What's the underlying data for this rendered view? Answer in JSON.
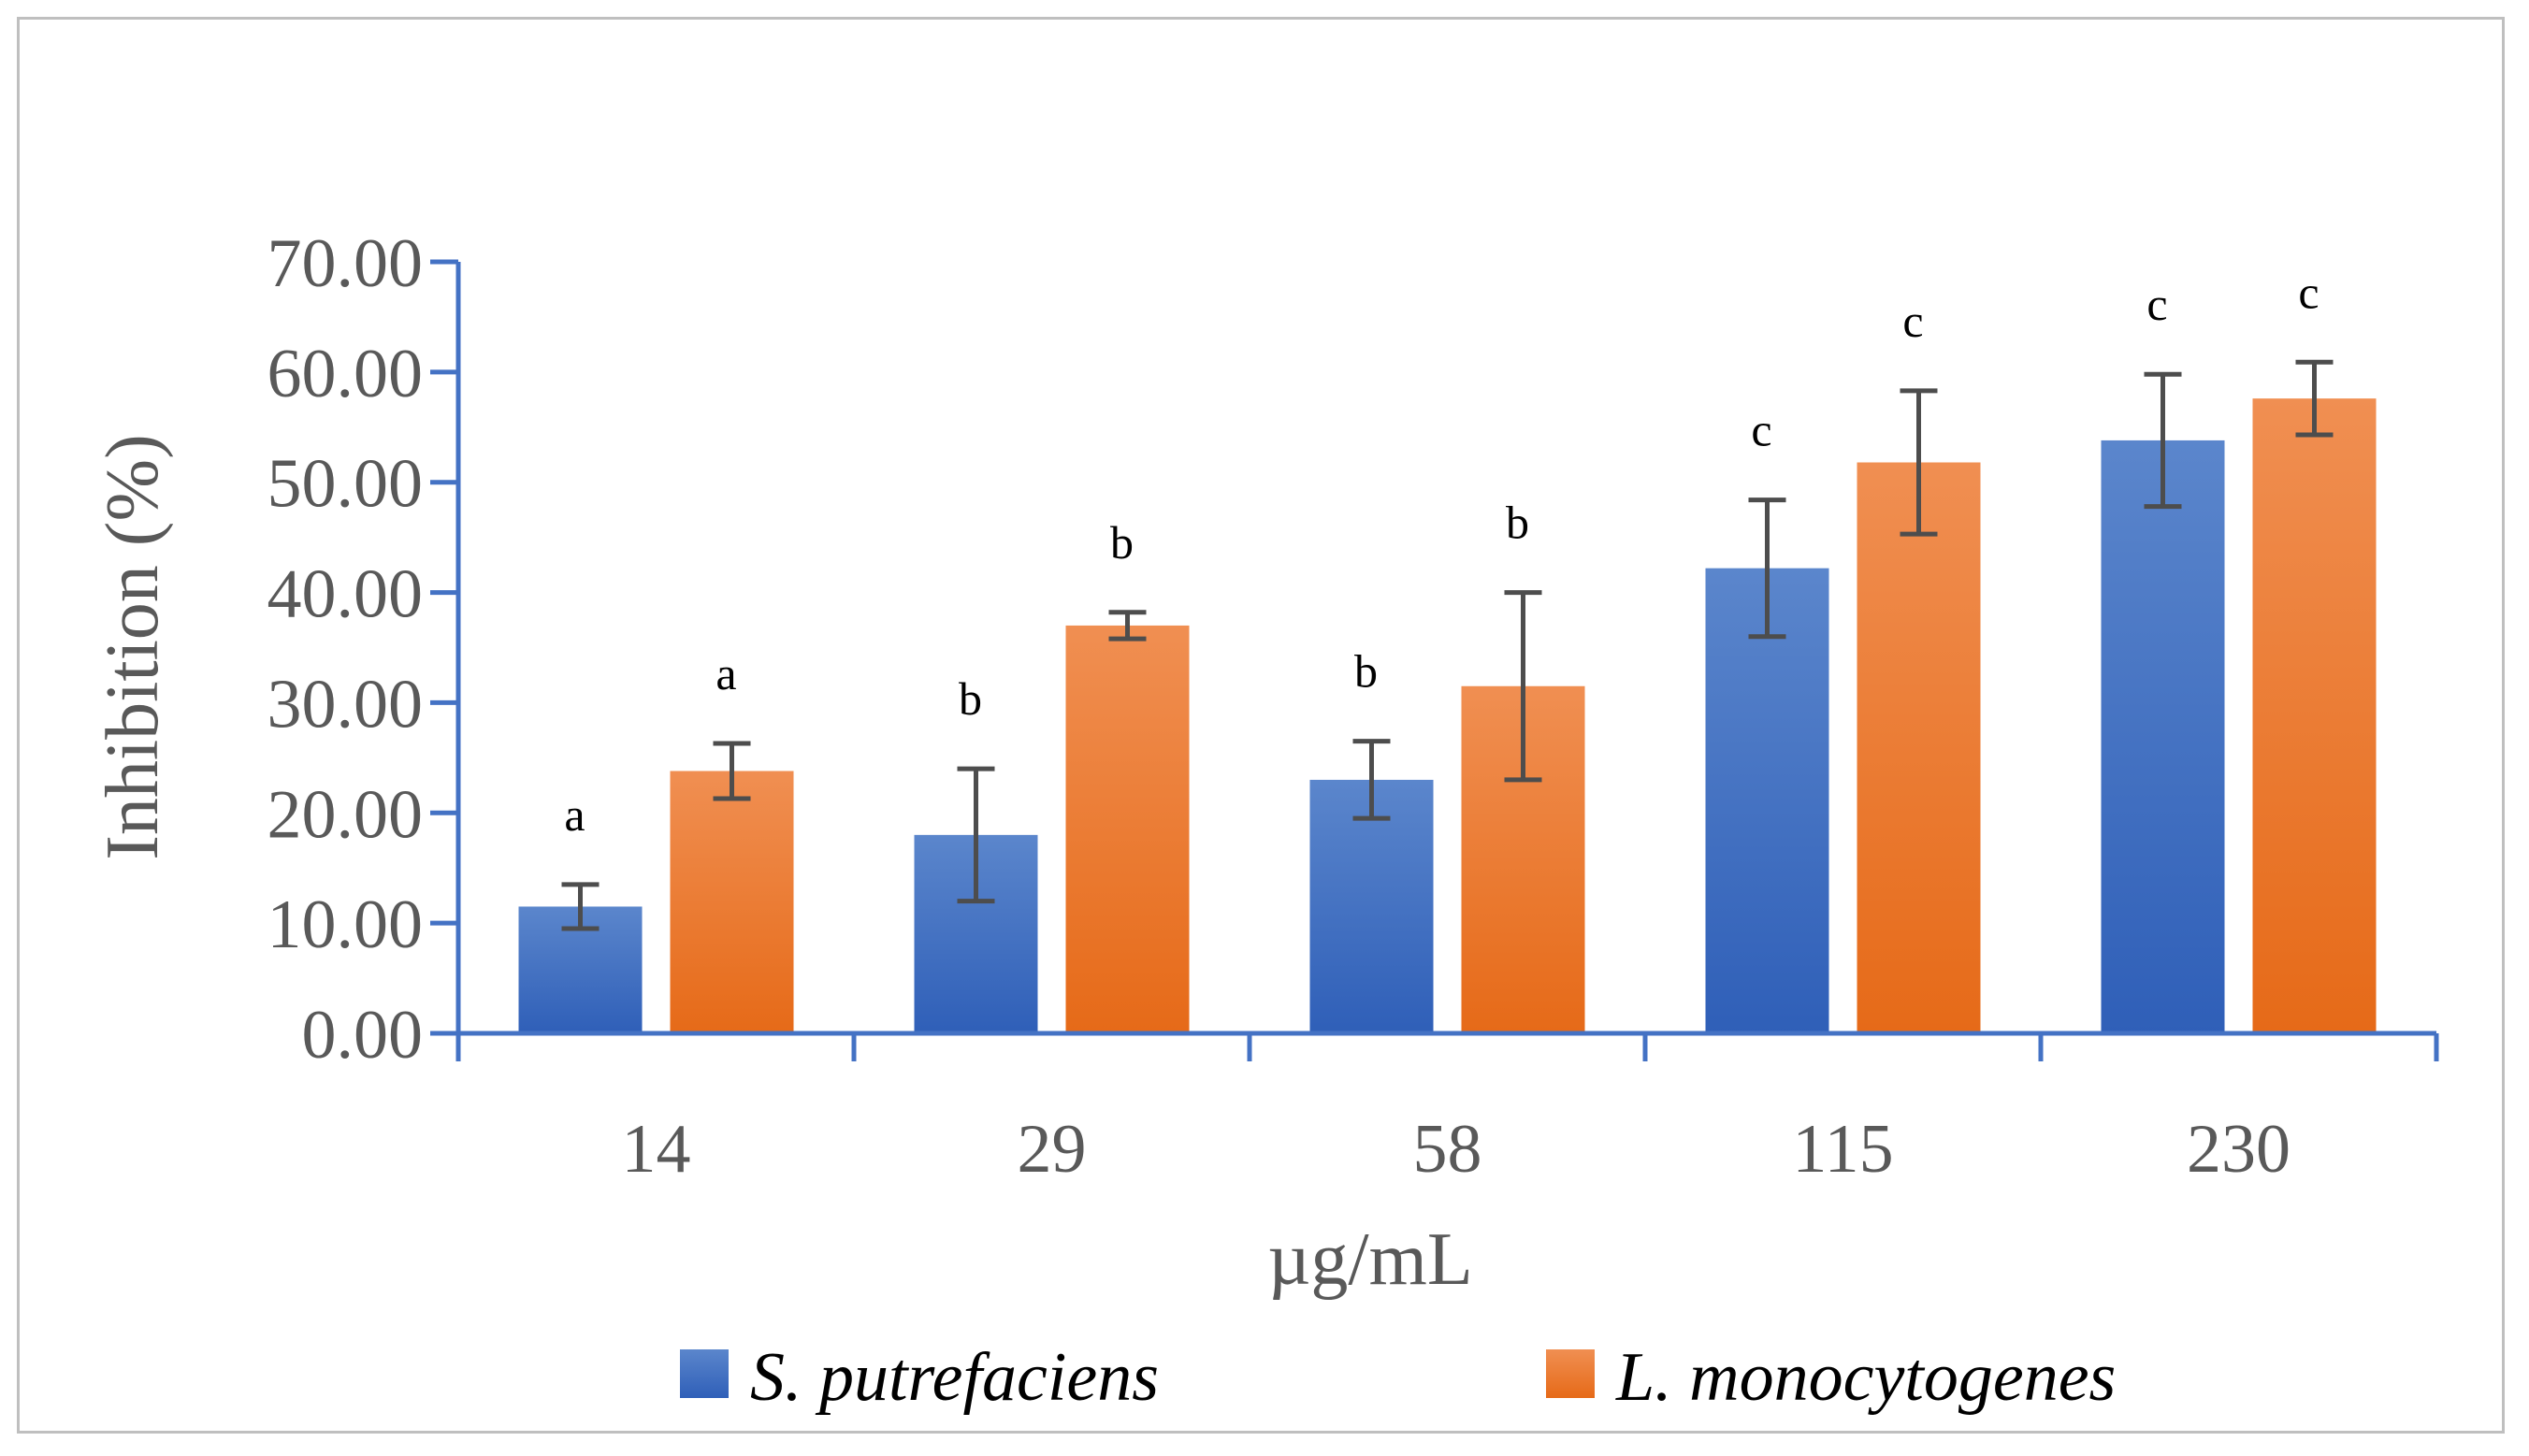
{
  "chart_data": {
    "type": "bar",
    "title": "",
    "xlabel": "µg/mL",
    "ylabel": "Inhibition (%)",
    "ylim": [
      0,
      70
    ],
    "yticks": [
      "0.00",
      "10.00",
      "20.00",
      "30.00",
      "40.00",
      "50.00",
      "60.00",
      "70.00"
    ],
    "categories": [
      "14",
      "29",
      "58",
      "115",
      "230"
    ],
    "series": [
      {
        "name": "S. putrefaciens",
        "color": "#4472c4",
        "values": [
          11.5,
          18.0,
          23.0,
          42.2,
          53.8
        ],
        "error": [
          2.0,
          6.0,
          3.5,
          6.2,
          6.0
        ],
        "letters": [
          "a",
          "b",
          "b",
          "c",
          "c"
        ]
      },
      {
        "name": "L. monocytogenes",
        "color": "#ed7d31",
        "values": [
          23.8,
          37.0,
          31.5,
          51.8,
          57.6
        ],
        "error": [
          2.5,
          1.2,
          8.5,
          6.5,
          3.3
        ],
        "letters": [
          "a",
          "b",
          "b",
          "c",
          "c"
        ]
      }
    ],
    "legend": "bottom",
    "grid": false
  }
}
